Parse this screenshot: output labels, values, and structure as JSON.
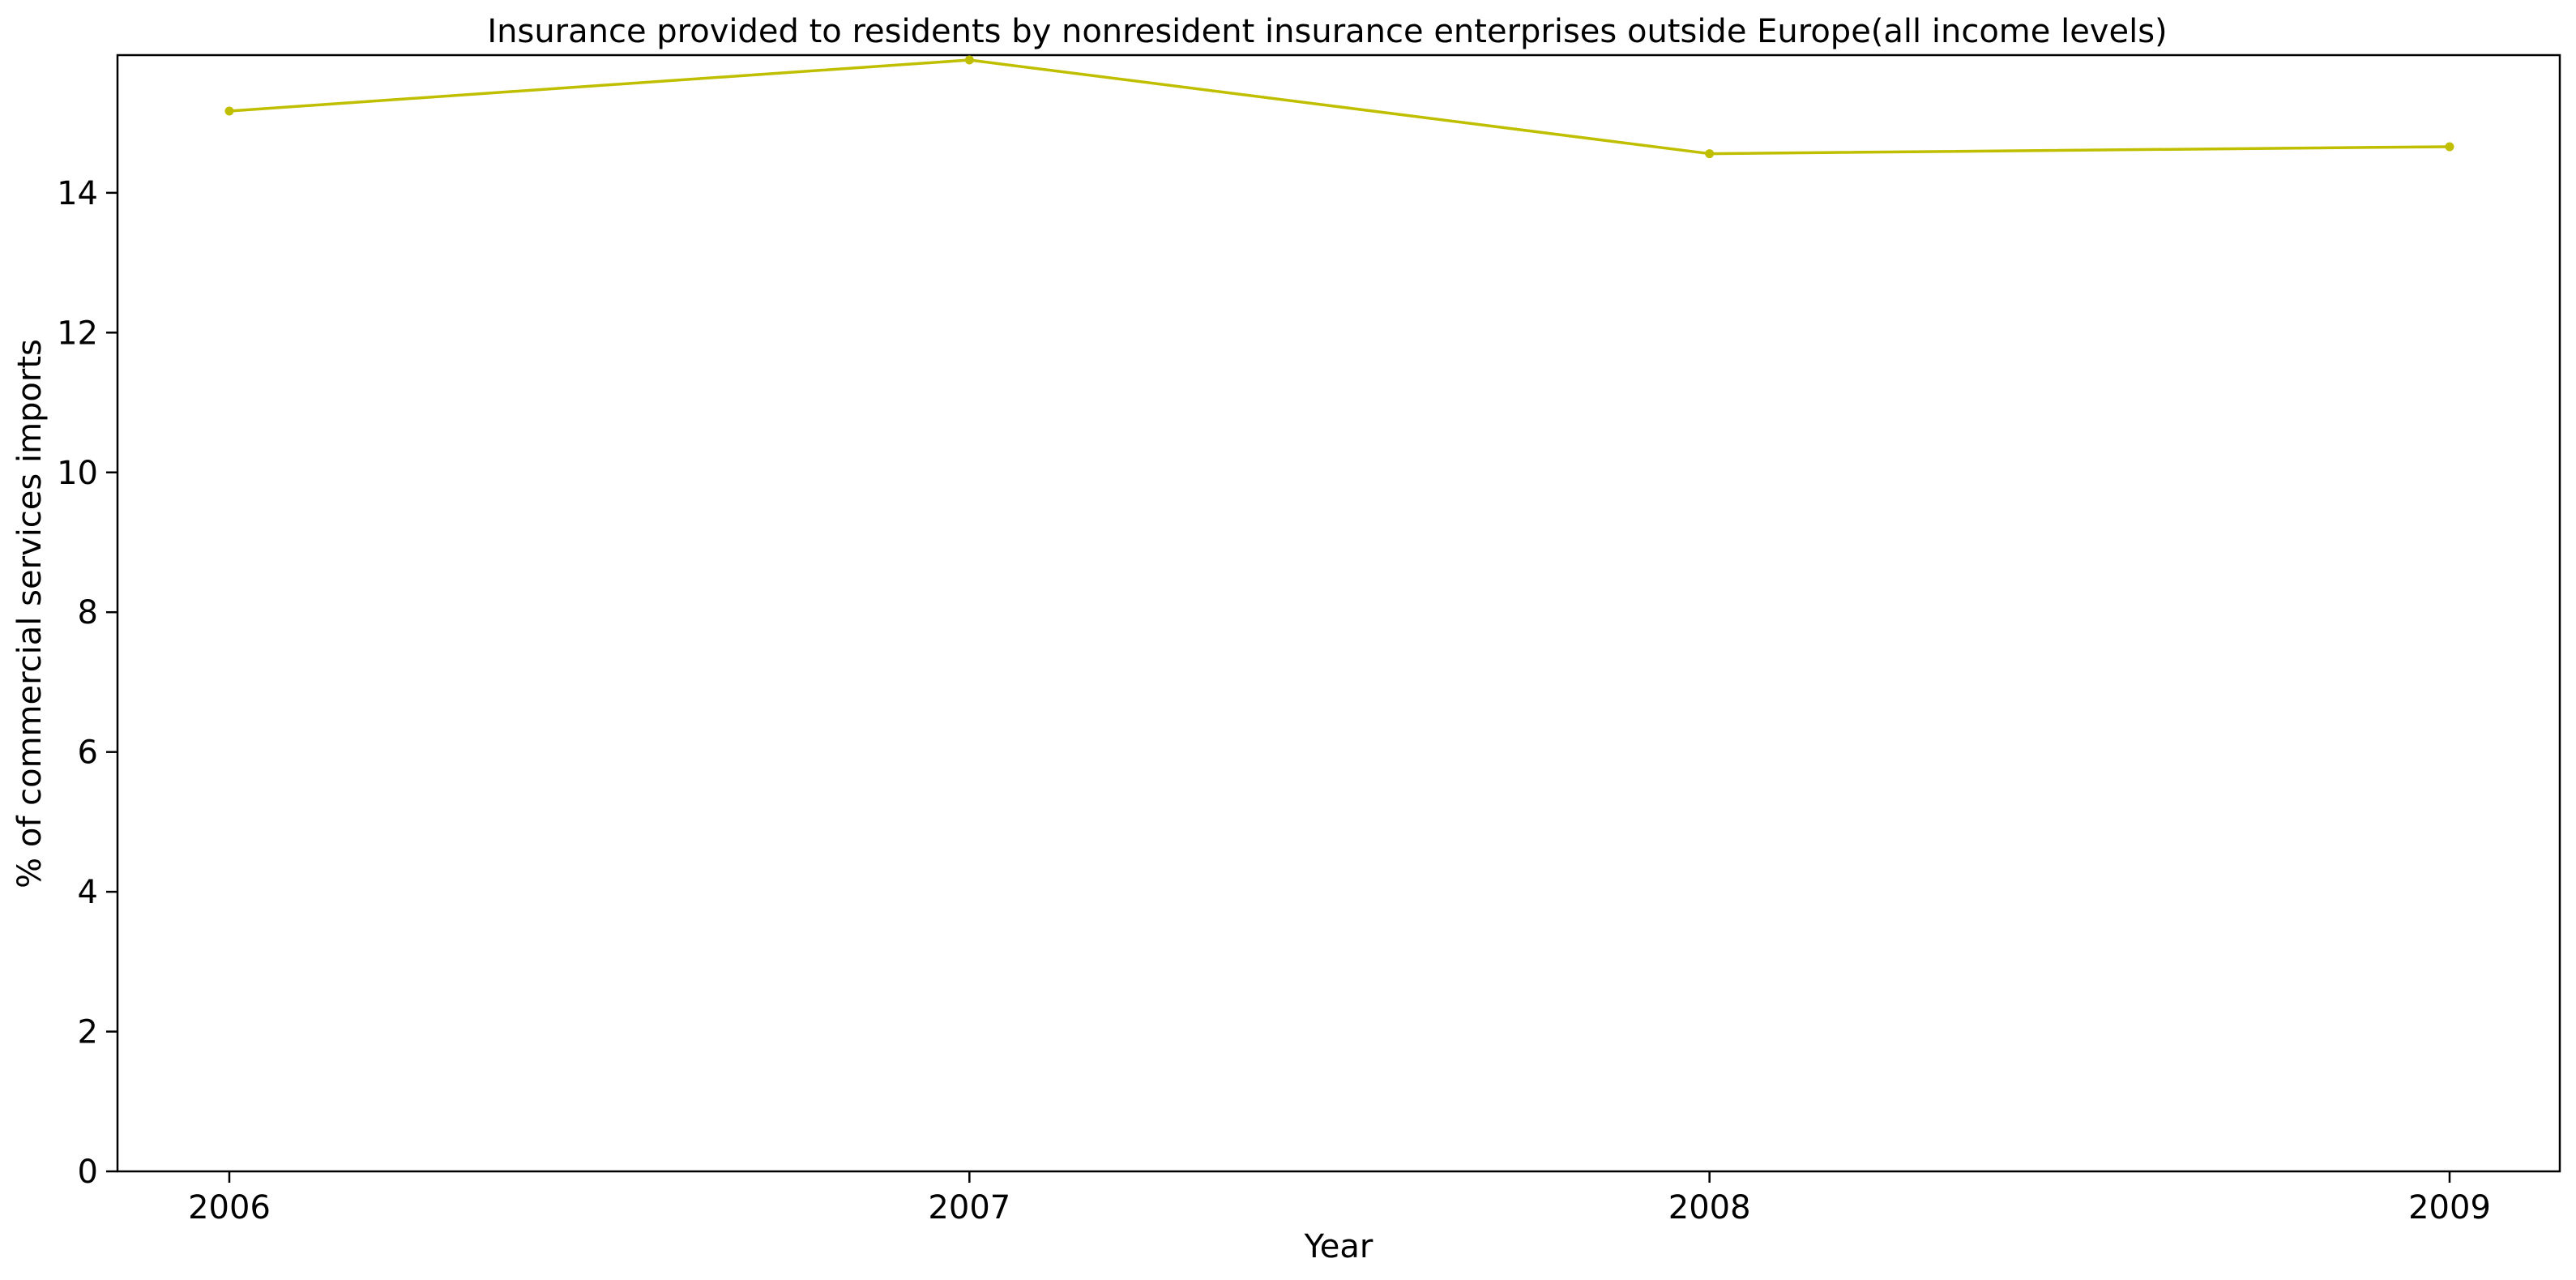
{
  "chart_data": {
    "type": "line",
    "title": "Insurance provided to residents by nonresident insurance enterprises outside Europe(all income levels)",
    "xlabel": "Year",
    "ylabel": "% of commercial services imports",
    "x": [
      "2006",
      "2007",
      "2008",
      "2009"
    ],
    "series": [
      {
        "values": [
          15.17,
          15.9,
          14.56,
          14.66
        ],
        "color": "#bfbf00"
      }
    ],
    "ylim": [
      0,
      15.97
    ],
    "yticks": [
      0,
      2,
      4,
      6,
      8,
      10,
      12,
      14
    ],
    "grid": false,
    "legend": "none"
  }
}
